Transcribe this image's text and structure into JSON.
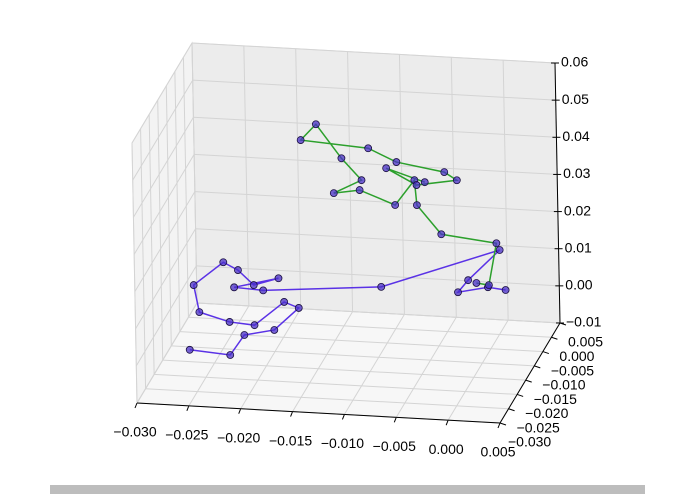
{
  "chart_data": {
    "type": "line3d",
    "xlim": [
      -0.03,
      0.005
    ],
    "xticks": [
      {
        "value": -0.03,
        "label": "−0.030"
      },
      {
        "value": -0.025,
        "label": "−0.025"
      },
      {
        "value": -0.02,
        "label": "−0.020"
      },
      {
        "value": -0.015,
        "label": "−0.015"
      },
      {
        "value": -0.01,
        "label": "−0.010"
      },
      {
        "value": -0.005,
        "label": "−0.005"
      },
      {
        "value": 0.0,
        "label": "0.000"
      },
      {
        "value": 0.005,
        "label": "0.005"
      }
    ],
    "ylim": [
      -0.03,
      0.005
    ],
    "yticks": [
      {
        "value": 0.005,
        "label": "0.005"
      },
      {
        "value": 0.0,
        "label": "0.000"
      },
      {
        "value": -0.005,
        "label": "−0.005"
      },
      {
        "value": -0.01,
        "label": "−0.010"
      },
      {
        "value": -0.015,
        "label": "−0.015"
      },
      {
        "value": -0.02,
        "label": "−0.020"
      },
      {
        "value": -0.025,
        "label": "−0.025"
      },
      {
        "value": -0.03,
        "label": "−0.030"
      }
    ],
    "zlim": [
      -0.01,
      0.06
    ],
    "zticks": [
      {
        "value": -0.01,
        "label": "−0.01"
      },
      {
        "value": 0.0,
        "label": "0.00"
      },
      {
        "value": 0.01,
        "label": "0.01"
      },
      {
        "value": 0.02,
        "label": "0.02"
      },
      {
        "value": 0.03,
        "label": "0.03"
      },
      {
        "value": 0.04,
        "label": "0.04"
      },
      {
        "value": 0.05,
        "label": "0.05"
      },
      {
        "value": 0.06,
        "label": "0.06"
      }
    ],
    "grid": true,
    "series": [
      {
        "color": "#5a32e6",
        "marker_color": "#4a2fc8",
        "x": [
          -0.0278,
          -0.0239,
          -0.0225,
          -0.0196,
          -0.0172,
          -0.0186,
          -0.0215,
          -0.0239,
          -0.0268,
          -0.0273,
          -0.0244,
          -0.023,
          -0.0215,
          -0.0191,
          -0.0234,
          -0.0206,
          -0.0092,
          0.0023,
          -0.0008,
          -0.0018,
          0.0011,
          0.0028
        ],
        "y": [
          -0.0125,
          -0.0125,
          -0.0125,
          -0.0125,
          -0.0125,
          -0.0125,
          -0.0125,
          -0.0125,
          -0.0125,
          -0.0125,
          -0.0125,
          -0.0125,
          -0.0125,
          -0.0125,
          -0.0125,
          -0.0125,
          -0.0125,
          -0.0125,
          -0.0125,
          -0.0125,
          -0.0125,
          -0.0125
        ],
        "z": [
          -0.0088,
          -0.0096,
          -0.004,
          -0.0022,
          0.0041,
          0.0055,
          -0.0012,
          -0.0007,
          0.0015,
          0.0087,
          0.0153,
          0.0134,
          0.0096,
          0.0118,
          0.0087,
          0.0083,
          0.011,
          0.0227,
          0.0141,
          0.0107,
          0.0125,
          0.012
        ]
      },
      {
        "color": "#2ca02c",
        "marker_color": "#4a2fc8",
        "x": [
          -0.0012,
          0.0,
          0.0008,
          -0.0045,
          -0.0068,
          -0.007,
          -0.0089,
          -0.0123,
          -0.0148,
          -0.0121,
          -0.014,
          -0.0164,
          -0.0179,
          -0.0114,
          -0.0087,
          -0.0041,
          -0.0029,
          -0.0068,
          -0.0097,
          -0.006
        ],
        "y": [
          -0.0055,
          -0.0055,
          -0.0055,
          -0.0055,
          -0.0055,
          -0.0055,
          -0.0055,
          -0.0055,
          -0.0055,
          -0.0055,
          -0.0055,
          -0.0055,
          -0.0055,
          -0.0055,
          -0.0055,
          -0.0055,
          -0.0055,
          -0.0055,
          -0.0055,
          -0.0055
        ],
        "z": [
          0.0079,
          0.0075,
          0.0189,
          0.0205,
          0.028,
          0.0347,
          0.0277,
          0.0312,
          0.03,
          0.0339,
          0.0395,
          0.0483,
          0.0438,
          0.0426,
          0.0393,
          0.0373,
          0.0353,
          0.0334,
          0.0375,
          0.0343
        ]
      }
    ]
  }
}
